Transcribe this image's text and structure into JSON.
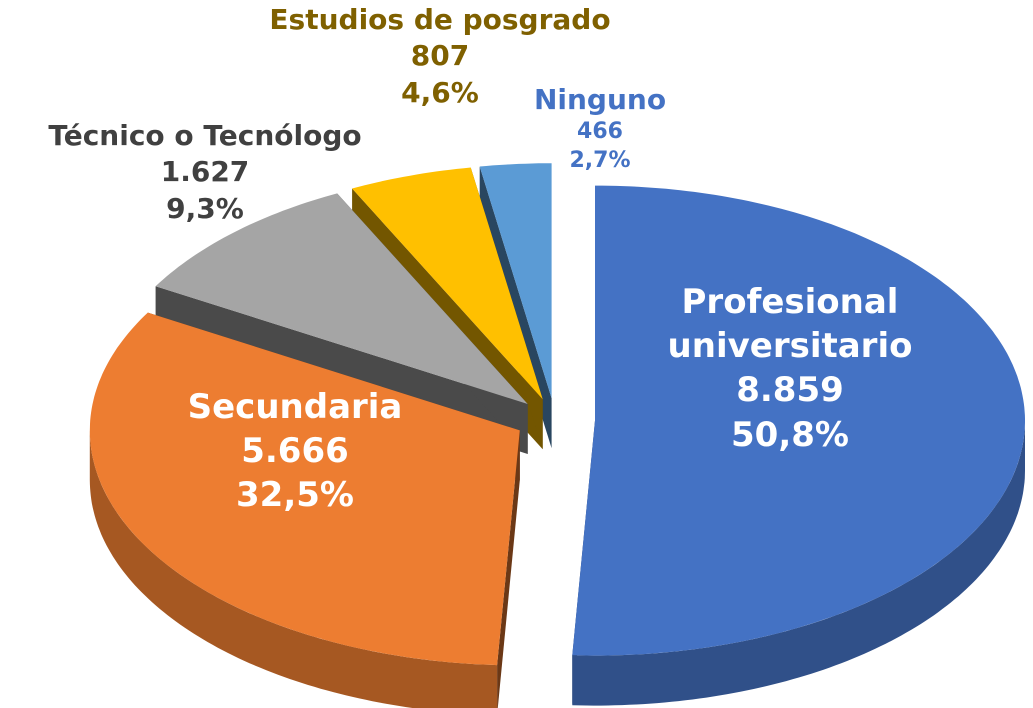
{
  "chart_data": {
    "type": "pie",
    "categories": [
      "Profesional universitario",
      "Secundaria",
      "Técnico o Tecnólogo",
      "Estudios de posgrado",
      "Ninguno"
    ],
    "values": [
      8859,
      5666,
      1627,
      807,
      466
    ],
    "value_labels": [
      "8.859",
      "5.666",
      "1.627",
      "807",
      "466"
    ],
    "percentages": [
      50.8,
      32.5,
      9.3,
      4.6,
      2.7
    ],
    "percent_labels": [
      "50,8%",
      "32,5%",
      "9,3%",
      "4,6%",
      "2,7%"
    ],
    "colors": [
      "#4472c4",
      "#ed7d31",
      "#a5a5a5",
      "#ffc000",
      "#5b9bd5"
    ],
    "label_colors": [
      "#ffffff",
      "#ffffff",
      "#404040",
      "#7f6000",
      "#4472c4"
    ]
  }
}
